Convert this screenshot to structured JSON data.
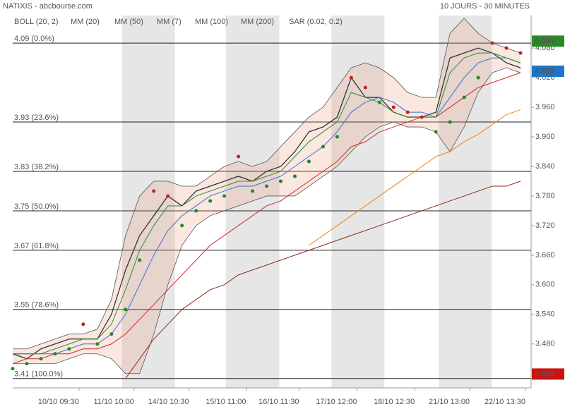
{
  "chart_data": {
    "type": "line",
    "title": "NATIXIS - abcbourse.com",
    "subtitle": "10 JOURS - 30 MINUTES",
    "x": [
      0,
      4,
      8,
      12,
      16,
      20,
      24,
      28,
      32,
      36,
      40,
      44,
      48,
      52,
      56,
      60,
      64,
      68,
      72,
      76,
      80,
      84,
      88,
      92,
      96,
      100,
      104,
      108,
      112,
      116,
      120,
      124,
      128,
      132,
      136,
      140,
      144
    ],
    "xlim": [
      0,
      147
    ],
    "xticks": [
      {
        "value": 18.8,
        "label": "10/10 09:30"
      },
      {
        "value": 34.4,
        "label": "11/10 10:00"
      },
      {
        "value": 50,
        "label": "14/10 10:30"
      },
      {
        "value": 66.2,
        "label": "15/10 11:00"
      },
      {
        "value": 81.2,
        "label": "16/10 11:30"
      },
      {
        "value": 97.6,
        "label": "17/10 12:00"
      },
      {
        "value": 114,
        "label": "18/10 12:30"
      },
      {
        "value": 129.6,
        "label": "21/10 13:00"
      },
      {
        "value": 145.4,
        "label": "22/10 13:30"
      }
    ],
    "session_bands": [
      [
        31,
        46
      ],
      [
        60.4,
        75.6
      ],
      [
        90.4,
        105.4
      ],
      [
        120.8,
        135.8
      ]
    ],
    "ylim": [
      3.391,
      4.146
    ],
    "yticks": [
      {
        "value": 3.48,
        "label": "3.480"
      },
      {
        "value": 3.54,
        "label": "3.540"
      },
      {
        "value": 3.6,
        "label": "3.600"
      },
      {
        "value": 3.66,
        "label": "3.660"
      },
      {
        "value": 3.72,
        "label": "3.720"
      },
      {
        "value": 3.78,
        "label": "3.780"
      },
      {
        "value": 3.84,
        "label": "3.840"
      },
      {
        "value": 3.9,
        "label": "3.900"
      },
      {
        "value": 3.96,
        "label": "3.960"
      },
      {
        "value": 4.02,
        "label": "4.020"
      },
      {
        "value": 4.08,
        "label": "4.080"
      }
    ],
    "levels": [
      {
        "value": 4.09,
        "label": "4.09 (0.0%)"
      },
      {
        "value": 3.93,
        "label": "3.93 (23.6%)"
      },
      {
        "value": 3.83,
        "label": "3.83 (38.2%)"
      },
      {
        "value": 3.75,
        "label": "3.75 (50.0%)"
      },
      {
        "value": 3.67,
        "label": "3.67 (61.8%)"
      },
      {
        "value": 3.55,
        "label": "3.55 (78.6%)"
      },
      {
        "value": 3.41,
        "label": "3.41 (100.0%)"
      }
    ],
    "price": {
      "color": "#333333",
      "values": [
        3.46,
        3.45,
        3.47,
        3.48,
        3.49,
        3.49,
        3.49,
        3.54,
        3.63,
        3.7,
        3.74,
        3.78,
        3.76,
        3.79,
        3.8,
        3.81,
        3.82,
        3.81,
        3.83,
        3.84,
        3.87,
        3.91,
        3.92,
        3.94,
        4.02,
        3.98,
        3.98,
        3.95,
        3.94,
        3.94,
        3.95,
        4.06,
        4.07,
        4.08,
        4.07,
        4.05,
        4.04
      ]
    },
    "series": [
      {
        "name": "BOLL (20, 2)",
        "color": "#555555",
        "upper": [
          3.47,
          3.47,
          3.48,
          3.49,
          3.5,
          3.5,
          3.51,
          3.57,
          3.7,
          3.78,
          3.81,
          3.81,
          3.8,
          3.8,
          3.82,
          3.84,
          3.85,
          3.84,
          3.85,
          3.88,
          3.91,
          3.94,
          3.96,
          4.0,
          4.04,
          4.05,
          4.04,
          4.02,
          3.99,
          3.98,
          3.98,
          4.11,
          4.14,
          4.11,
          4.09,
          4.08,
          4.07
        ],
        "lower": [
          3.44,
          3.44,
          3.44,
          3.44,
          3.45,
          3.46,
          3.46,
          3.45,
          3.42,
          3.42,
          3.5,
          3.6,
          3.68,
          3.72,
          3.74,
          3.75,
          3.76,
          3.77,
          3.78,
          3.78,
          3.78,
          3.8,
          3.82,
          3.84,
          3.87,
          3.9,
          3.92,
          3.93,
          3.92,
          3.92,
          3.91,
          3.87,
          3.92,
          3.99,
          4.03,
          4.04,
          4.03
        ]
      },
      {
        "name": "MM (20)",
        "color": "#3a6fd8",
        "values": [
          3.46,
          3.46,
          3.46,
          3.46,
          3.47,
          3.48,
          3.48,
          3.5,
          3.54,
          3.6,
          3.66,
          3.71,
          3.74,
          3.76,
          3.78,
          3.79,
          3.8,
          3.8,
          3.81,
          3.82,
          3.84,
          3.86,
          3.88,
          3.91,
          3.95,
          3.97,
          3.98,
          3.97,
          3.95,
          3.95,
          3.94,
          3.98,
          4.02,
          4.05,
          4.06,
          4.06,
          4.05
        ]
      },
      {
        "name": "MM (50)",
        "color": "#d62728",
        "values": [
          3.44,
          3.45,
          3.45,
          3.46,
          3.46,
          3.47,
          3.47,
          3.48,
          3.5,
          3.53,
          3.56,
          3.59,
          3.62,
          3.65,
          3.68,
          3.7,
          3.72,
          3.74,
          3.76,
          3.77,
          3.79,
          3.81,
          3.83,
          3.85,
          3.88,
          3.89,
          3.91,
          3.92,
          3.93,
          3.94,
          3.94,
          3.96,
          3.98,
          4.0,
          4.01,
          4.02,
          4.03
        ]
      },
      {
        "name": "MM (7)",
        "color": "#2c8c2c",
        "values": [
          3.46,
          3.46,
          3.46,
          3.47,
          3.48,
          3.49,
          3.49,
          3.52,
          3.59,
          3.67,
          3.72,
          3.76,
          3.76,
          3.78,
          3.79,
          3.8,
          3.81,
          3.81,
          3.82,
          3.83,
          3.86,
          3.89,
          3.91,
          3.93,
          3.99,
          3.98,
          3.97,
          3.95,
          3.94,
          3.94,
          3.94,
          4.03,
          4.06,
          4.07,
          4.07,
          4.06,
          4.05
        ]
      },
      {
        "name": "MM (100)",
        "color": "#f07f1a",
        "values": [
          null,
          null,
          null,
          null,
          null,
          null,
          null,
          null,
          null,
          null,
          null,
          null,
          null,
          null,
          null,
          null,
          null,
          null,
          null,
          null,
          null,
          3.68,
          3.7,
          3.72,
          3.74,
          3.76,
          3.78,
          3.8,
          3.82,
          3.84,
          3.86,
          3.87,
          3.89,
          3.905,
          3.925,
          3.945,
          3.955
        ]
      },
      {
        "name": "MM (200)",
        "color": "#8b2a1a",
        "values": [
          null,
          null,
          null,
          null,
          null,
          null,
          null,
          null,
          3.41,
          3.45,
          3.49,
          3.52,
          3.55,
          3.57,
          3.59,
          3.6,
          3.62,
          3.63,
          3.64,
          3.65,
          3.66,
          3.67,
          3.68,
          3.69,
          3.7,
          3.71,
          3.72,
          3.73,
          3.74,
          3.75,
          3.76,
          3.77,
          3.78,
          3.79,
          3.8,
          3.8,
          3.81
        ]
      },
      {
        "name": "SAR (0.02, 0.2)",
        "color": "#c41e1e",
        "color_below": "#1f8a1f",
        "values": [
          3.43,
          3.44,
          3.45,
          3.46,
          3.47,
          3.52,
          3.48,
          3.5,
          3.55,
          3.65,
          3.79,
          3.78,
          3.72,
          3.75,
          3.77,
          3.78,
          3.86,
          3.79,
          3.8,
          3.81,
          3.82,
          3.85,
          3.88,
          3.9,
          4.02,
          4.0,
          3.97,
          3.96,
          3.95,
          3.94,
          3.91,
          3.93,
          3.98,
          4.02,
          4.09,
          4.08,
          4.07
        ]
      }
    ],
    "value_badges": [
      {
        "value": 4.094,
        "color": "#2a8a2a"
      },
      {
        "value": 4.033,
        "color": "#1e74c8"
      },
      {
        "value": 3.419,
        "color": "#cc1111"
      }
    ]
  }
}
